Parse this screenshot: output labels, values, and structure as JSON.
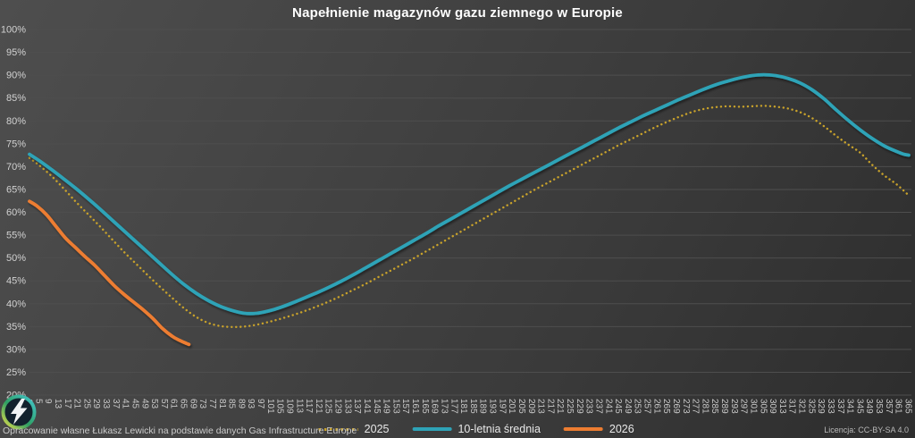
{
  "chart_data": {
    "type": "line",
    "title": "Napełnienie magazynów gazu ziemnego w Europie",
    "grid": "horizontal",
    "legend_position": "bottom",
    "x_axis": {
      "min": 1,
      "max": 365,
      "tick_labels": [
        "1",
        "5",
        "9",
        "13",
        "17",
        "21",
        "25",
        "29",
        "33",
        "37",
        "41",
        "45",
        "49",
        "53",
        "57",
        "61",
        "65",
        "69",
        "73",
        "77",
        "81",
        "85",
        "89",
        "93",
        "97",
        "101",
        "105",
        "109",
        "113",
        "117",
        "121",
        "125",
        "129",
        "133",
        "137",
        "141",
        "145",
        "149",
        "153",
        "157",
        "161",
        "165",
        "169",
        "173",
        "177",
        "181",
        "185",
        "189",
        "193",
        "197",
        "201",
        "205",
        "209",
        "213",
        "217",
        "221",
        "225",
        "229",
        "233",
        "237",
        "241",
        "245",
        "249",
        "253",
        "257",
        "261",
        "265",
        "269",
        "273",
        "277",
        "281",
        "285",
        "289",
        "293",
        "297",
        "301",
        "305",
        "309",
        "313",
        "317",
        "321",
        "325",
        "329",
        "333",
        "337",
        "341",
        "345",
        "349",
        "353",
        "357",
        "361",
        "365"
      ]
    },
    "y_axis": {
      "min": 20,
      "max": 100,
      "step": 5,
      "tick_labels": [
        "100%",
        "95%",
        "90%",
        "85%",
        "80%",
        "75%",
        "70%",
        "65%",
        "60%",
        "55%",
        "50%",
        "45%",
        "40%",
        "35%",
        "30%",
        "25%",
        "20%"
      ]
    },
    "series": [
      {
        "name": "2025",
        "color": "#c8a22b",
        "style": "dotted",
        "points": [
          [
            1,
            71.9
          ],
          [
            5,
            70.3
          ],
          [
            10,
            68.0
          ],
          [
            15,
            65.3
          ],
          [
            20,
            62.4
          ],
          [
            25,
            59.7
          ],
          [
            30,
            57.0
          ],
          [
            35,
            54.2
          ],
          [
            40,
            51.4
          ],
          [
            45,
            48.8
          ],
          [
            50,
            46.2
          ],
          [
            55,
            43.7
          ],
          [
            60,
            41.3
          ],
          [
            65,
            39.0
          ],
          [
            70,
            37.1
          ],
          [
            75,
            35.8
          ],
          [
            80,
            35.1
          ],
          [
            85,
            34.9
          ],
          [
            90,
            35.0
          ],
          [
            95,
            35.4
          ],
          [
            100,
            36.0
          ],
          [
            105,
            36.7
          ],
          [
            110,
            37.5
          ],
          [
            115,
            38.4
          ],
          [
            120,
            39.4
          ],
          [
            125,
            40.5
          ],
          [
            130,
            41.7
          ],
          [
            135,
            43.0
          ],
          [
            140,
            44.3
          ],
          [
            145,
            45.7
          ],
          [
            150,
            47.1
          ],
          [
            155,
            48.5
          ],
          [
            160,
            49.9
          ],
          [
            165,
            51.4
          ],
          [
            170,
            52.9
          ],
          [
            175,
            54.4
          ],
          [
            180,
            55.9
          ],
          [
            185,
            57.4
          ],
          [
            190,
            58.9
          ],
          [
            195,
            60.4
          ],
          [
            200,
            61.9
          ],
          [
            205,
            63.4
          ],
          [
            210,
            64.9
          ],
          [
            215,
            66.3
          ],
          [
            220,
            67.7
          ],
          [
            225,
            69.1
          ],
          [
            230,
            70.5
          ],
          [
            235,
            71.9
          ],
          [
            240,
            73.3
          ],
          [
            245,
            74.7
          ],
          [
            250,
            76.0
          ],
          [
            255,
            77.3
          ],
          [
            260,
            78.6
          ],
          [
            265,
            79.8
          ],
          [
            270,
            80.9
          ],
          [
            275,
            81.9
          ],
          [
            280,
            82.6
          ],
          [
            285,
            83.0
          ],
          [
            290,
            83.2
          ],
          [
            295,
            83.1
          ],
          [
            300,
            83.2
          ],
          [
            305,
            83.3
          ],
          [
            310,
            83.1
          ],
          [
            315,
            82.7
          ],
          [
            320,
            81.9
          ],
          [
            325,
            80.6
          ],
          [
            330,
            78.8
          ],
          [
            335,
            76.7
          ],
          [
            340,
            74.8
          ],
          [
            345,
            73.0
          ],
          [
            350,
            70.3
          ],
          [
            355,
            68.0
          ],
          [
            360,
            66.1
          ],
          [
            365,
            63.7
          ]
        ]
      },
      {
        "name": "10-letnia średnia",
        "color": "#2ea3b7",
        "style": "solid",
        "points": [
          [
            1,
            72.7
          ],
          [
            5,
            71.3
          ],
          [
            10,
            69.4
          ],
          [
            15,
            67.4
          ],
          [
            20,
            65.3
          ],
          [
            25,
            63.1
          ],
          [
            30,
            60.8
          ],
          [
            35,
            58.4
          ],
          [
            40,
            56.0
          ],
          [
            45,
            53.6
          ],
          [
            50,
            51.2
          ],
          [
            55,
            48.8
          ],
          [
            60,
            46.4
          ],
          [
            65,
            44.2
          ],
          [
            70,
            42.3
          ],
          [
            75,
            40.7
          ],
          [
            80,
            39.4
          ],
          [
            85,
            38.5
          ],
          [
            90,
            37.9
          ],
          [
            95,
            37.9
          ],
          [
            100,
            38.4
          ],
          [
            105,
            39.2
          ],
          [
            110,
            40.2
          ],
          [
            115,
            41.3
          ],
          [
            120,
            42.4
          ],
          [
            125,
            43.6
          ],
          [
            130,
            44.9
          ],
          [
            135,
            46.3
          ],
          [
            140,
            47.8
          ],
          [
            145,
            49.3
          ],
          [
            150,
            50.8
          ],
          [
            155,
            52.3
          ],
          [
            160,
            53.8
          ],
          [
            165,
            55.3
          ],
          [
            170,
            56.9
          ],
          [
            175,
            58.4
          ],
          [
            180,
            59.9
          ],
          [
            185,
            61.4
          ],
          [
            190,
            62.9
          ],
          [
            195,
            64.4
          ],
          [
            200,
            65.9
          ],
          [
            205,
            67.3
          ],
          [
            210,
            68.7
          ],
          [
            215,
            70.1
          ],
          [
            220,
            71.5
          ],
          [
            225,
            72.9
          ],
          [
            230,
            74.3
          ],
          [
            235,
            75.7
          ],
          [
            240,
            77.1
          ],
          [
            245,
            78.5
          ],
          [
            250,
            79.8
          ],
          [
            255,
            81.1
          ],
          [
            260,
            82.3
          ],
          [
            265,
            83.5
          ],
          [
            270,
            84.7
          ],
          [
            275,
            85.8
          ],
          [
            280,
            86.9
          ],
          [
            285,
            87.9
          ],
          [
            290,
            88.7
          ],
          [
            295,
            89.4
          ],
          [
            300,
            89.9
          ],
          [
            305,
            90.1
          ],
          [
            310,
            89.9
          ],
          [
            315,
            89.3
          ],
          [
            320,
            88.3
          ],
          [
            325,
            86.8
          ],
          [
            330,
            84.8
          ],
          [
            335,
            82.4
          ],
          [
            340,
            80.1
          ],
          [
            345,
            78.0
          ],
          [
            350,
            76.1
          ],
          [
            355,
            74.5
          ],
          [
            360,
            73.3
          ],
          [
            363,
            72.7
          ],
          [
            365,
            72.5
          ]
        ]
      },
      {
        "name": "2026",
        "color": "#ed7d31",
        "style": "solid",
        "points": [
          [
            1,
            62.4
          ],
          [
            4,
            61.4
          ],
          [
            8,
            59.5
          ],
          [
            12,
            56.9
          ],
          [
            16,
            54.3
          ],
          [
            20,
            52.3
          ],
          [
            24,
            50.3
          ],
          [
            28,
            48.4
          ],
          [
            32,
            46.2
          ],
          [
            36,
            44.0
          ],
          [
            40,
            42.1
          ],
          [
            44,
            40.4
          ],
          [
            48,
            38.7
          ],
          [
            52,
            36.8
          ],
          [
            56,
            34.6
          ],
          [
            60,
            32.9
          ],
          [
            63,
            32.0
          ],
          [
            66,
            31.3
          ],
          [
            67,
            31.1
          ]
        ]
      }
    ]
  },
  "footer": {
    "attribution": "Opracowanie własne Łukasz Lewicki na podstawie danych Gas Infrastructure Europe",
    "license": "Licencja: CC-BY-SA 4.0"
  }
}
